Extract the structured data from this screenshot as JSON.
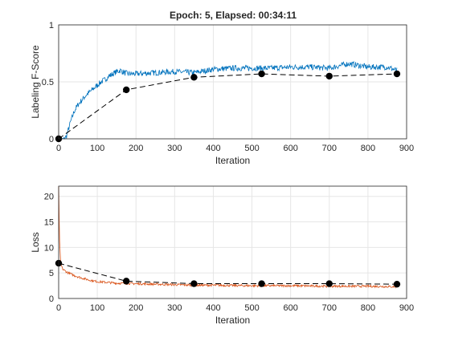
{
  "figure": {
    "title": "Epoch: 5, Elapsed: 00:34:11"
  },
  "chart_data": [
    {
      "type": "line",
      "xlabel": "Iteration",
      "ylabel": "Labeling F-Score",
      "xlim": [
        0,
        900
      ],
      "ylim": [
        0,
        1
      ],
      "xticks": [
        "0",
        "100",
        "200",
        "300",
        "400",
        "500",
        "600",
        "700",
        "800",
        "900"
      ],
      "yticks": [
        "0",
        "0.5",
        "1"
      ],
      "ytick_values": [
        0,
        0.5,
        1
      ],
      "grid": true,
      "legend": "none",
      "series": [
        {
          "color": "#0072BD",
          "style": "solid",
          "x": [
            0,
            10,
            20,
            30,
            40,
            50,
            60,
            70,
            80,
            90,
            100,
            110,
            120,
            130,
            140,
            150,
            160,
            170,
            180,
            200,
            250,
            300,
            350,
            400,
            450,
            500,
            550,
            600,
            650,
            700,
            750,
            800,
            850,
            875
          ],
          "y": [
            0.0,
            0.0,
            0.02,
            0.14,
            0.24,
            0.3,
            0.34,
            0.38,
            0.41,
            0.44,
            0.47,
            0.5,
            0.52,
            0.55,
            0.57,
            0.59,
            0.6,
            0.58,
            0.57,
            0.57,
            0.58,
            0.59,
            0.58,
            0.61,
            0.62,
            0.62,
            0.62,
            0.63,
            0.63,
            0.62,
            0.66,
            0.63,
            0.63,
            0.6
          ]
        },
        {
          "color": "#000000",
          "style": "dashed",
          "markers": true,
          "x": [
            0,
            175,
            350,
            525,
            700,
            875
          ],
          "y": [
            0.0,
            0.43,
            0.54,
            0.57,
            0.55,
            0.57
          ]
        }
      ]
    },
    {
      "type": "line",
      "xlabel": "Iteration",
      "ylabel": "Loss",
      "xlim": [
        0,
        900
      ],
      "ylim": [
        0,
        22
      ],
      "xticks": [
        "0",
        "100",
        "200",
        "300",
        "400",
        "500",
        "600",
        "700",
        "800",
        "900"
      ],
      "yticks": [
        "0",
        "5",
        "10",
        "15",
        "20"
      ],
      "ytick_values": [
        0,
        5,
        10,
        15,
        20
      ],
      "grid": true,
      "legend": "none",
      "series": [
        {
          "color": "#D95319",
          "style": "solid",
          "x": [
            0,
            2,
            5,
            10,
            20,
            40,
            60,
            80,
            100,
            150,
            200,
            250,
            300,
            350,
            400,
            500,
            600,
            700,
            800,
            875
          ],
          "y": [
            22,
            12,
            7,
            5.8,
            5.2,
            4.5,
            4.0,
            3.6,
            3.3,
            3.0,
            2.9,
            2.8,
            2.7,
            2.6,
            2.6,
            2.5,
            2.5,
            2.4,
            2.4,
            2.3
          ]
        },
        {
          "color": "#000000",
          "style": "dashed",
          "markers": true,
          "x": [
            0,
            175,
            350,
            525,
            700,
            875
          ],
          "y": [
            6.9,
            3.4,
            2.9,
            2.9,
            2.9,
            2.8
          ]
        }
      ]
    }
  ]
}
